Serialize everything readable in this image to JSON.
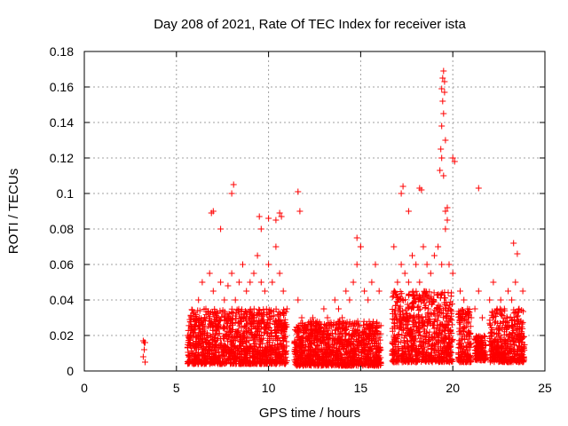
{
  "chart_data": {
    "type": "scatter",
    "title": "Day 208 of 2021, Rate Of TEC Index for receiver ista",
    "xlabel": "GPS time / hours",
    "ylabel": "ROTI / TECUs",
    "xlim": [
      0,
      25
    ],
    "ylim": [
      0,
      0.18
    ],
    "xticks": [
      0,
      5,
      10,
      15,
      20,
      25
    ],
    "yticks": [
      0,
      0.02,
      0.04,
      0.06,
      0.08,
      0.1,
      0.12,
      0.14,
      0.16,
      0.18
    ],
    "xtick_labels": [
      "0",
      "5",
      "10",
      "15",
      "20",
      "25"
    ],
    "ytick_labels": [
      "0",
      "0.02",
      "0.04",
      "0.06",
      "0.08",
      "0.1",
      "0.12",
      "0.14",
      "0.16",
      "0.18"
    ],
    "grid": true,
    "marker": "+",
    "marker_color": "#ff0000",
    "x": [
      3.2,
      3.25,
      3.3,
      3.2,
      3.3,
      3.25,
      5.6,
      5.8,
      6.0,
      6.2,
      6.4,
      6.6,
      6.8,
      7.0,
      7.2,
      7.4,
      7.6,
      7.8,
      8.0,
      8.2,
      8.4,
      8.6,
      8.8,
      9.0,
      9.2,
      9.4,
      9.6,
      9.8,
      10.0,
      10.2,
      10.4,
      10.6,
      10.8,
      11.0,
      11.6,
      11.8,
      12.0,
      12.2,
      12.4,
      12.6,
      12.8,
      13.0,
      13.2,
      13.4,
      13.6,
      13.8,
      14.0,
      14.2,
      14.4,
      14.6,
      14.8,
      15.0,
      15.2,
      15.4,
      15.6,
      15.8,
      16.0,
      16.8,
      17.0,
      17.2,
      17.4,
      17.6,
      17.8,
      18.0,
      18.2,
      18.4,
      18.6,
      18.8,
      19.0,
      19.2,
      19.4,
      19.6,
      19.8,
      20.0,
      20.4,
      20.6,
      20.8,
      21.0,
      21.2,
      21.4,
      21.6,
      22.0,
      22.2,
      22.4,
      22.6,
      22.8,
      23.0,
      23.2,
      23.4,
      23.6,
      23.8,
      6.9,
      7.0,
      7.4,
      8.0,
      8.1,
      9.5,
      9.6,
      10.0,
      10.4,
      10.6,
      10.7,
      11.6,
      11.7,
      14.8,
      15.0,
      17.2,
      17.3,
      17.6,
      18.2,
      18.3,
      19.3,
      19.35,
      19.4,
      19.45,
      19.5,
      19.55,
      19.6,
      19.7,
      20.0,
      20.1,
      21.4,
      23.3,
      23.5,
      19.5,
      19.45,
      19.4,
      19.55,
      19.6,
      19.7,
      19.5,
      19.4
    ],
    "y": [
      0.017,
      0.016,
      0.016,
      0.008,
      0.005,
      0.012,
      0.02,
      0.03,
      0.025,
      0.04,
      0.05,
      0.035,
      0.055,
      0.045,
      0.03,
      0.05,
      0.04,
      0.048,
      0.055,
      0.04,
      0.05,
      0.06,
      0.045,
      0.05,
      0.055,
      0.065,
      0.05,
      0.045,
      0.06,
      0.05,
      0.07,
      0.055,
      0.045,
      0.035,
      0.04,
      0.03,
      0.025,
      0.02,
      0.03,
      0.025,
      0.02,
      0.035,
      0.03,
      0.025,
      0.04,
      0.035,
      0.03,
      0.045,
      0.04,
      0.05,
      0.06,
      0.07,
      0.045,
      0.04,
      0.05,
      0.06,
      0.045,
      0.07,
      0.05,
      0.06,
      0.055,
      0.05,
      0.065,
      0.06,
      0.05,
      0.07,
      0.06,
      0.055,
      0.065,
      0.07,
      0.06,
      0.08,
      0.06,
      0.055,
      0.045,
      0.04,
      0.035,
      0.03,
      0.035,
      0.045,
      0.03,
      0.04,
      0.05,
      0.035,
      0.04,
      0.035,
      0.045,
      0.04,
      0.05,
      0.035,
      0.045,
      0.089,
      0.09,
      0.08,
      0.1,
      0.105,
      0.087,
      0.08,
      0.086,
      0.085,
      0.089,
      0.087,
      0.101,
      0.09,
      0.075,
      0.07,
      0.1,
      0.104,
      0.09,
      0.103,
      0.102,
      0.113,
      0.125,
      0.12,
      0.152,
      0.145,
      0.157,
      0.13,
      0.092,
      0.12,
      0.118,
      0.103,
      0.072,
      0.066,
      0.169,
      0.165,
      0.159,
      0.163,
      0.09,
      0.085,
      0.11,
      0.138
    ],
    "dense_bands": [
      {
        "x_start": 5.6,
        "x_end": 11.0,
        "y_min": 0.004,
        "y_max": 0.035
      },
      {
        "x_start": 11.4,
        "x_end": 16.1,
        "y_min": 0.003,
        "y_max": 0.028
      },
      {
        "x_start": 16.7,
        "x_end": 20.0,
        "y_min": 0.005,
        "y_max": 0.045
      },
      {
        "x_start": 20.3,
        "x_end": 21.0,
        "y_min": 0.005,
        "y_max": 0.035
      },
      {
        "x_start": 21.2,
        "x_end": 21.8,
        "y_min": 0.006,
        "y_max": 0.02
      },
      {
        "x_start": 22.0,
        "x_end": 23.9,
        "y_min": 0.005,
        "y_max": 0.035
      }
    ]
  }
}
